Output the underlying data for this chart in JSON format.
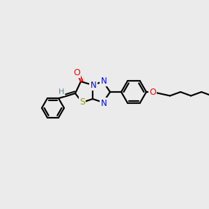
{
  "background_color": "#ebebeb",
  "bond_color": "#000000",
  "atom_colors": {
    "O": "#ff0000",
    "N": "#0000ff",
    "S": "#999900",
    "H": "#4a9090",
    "C": "#000000"
  },
  "figsize": [
    3.0,
    3.0
  ],
  "dpi": 100
}
